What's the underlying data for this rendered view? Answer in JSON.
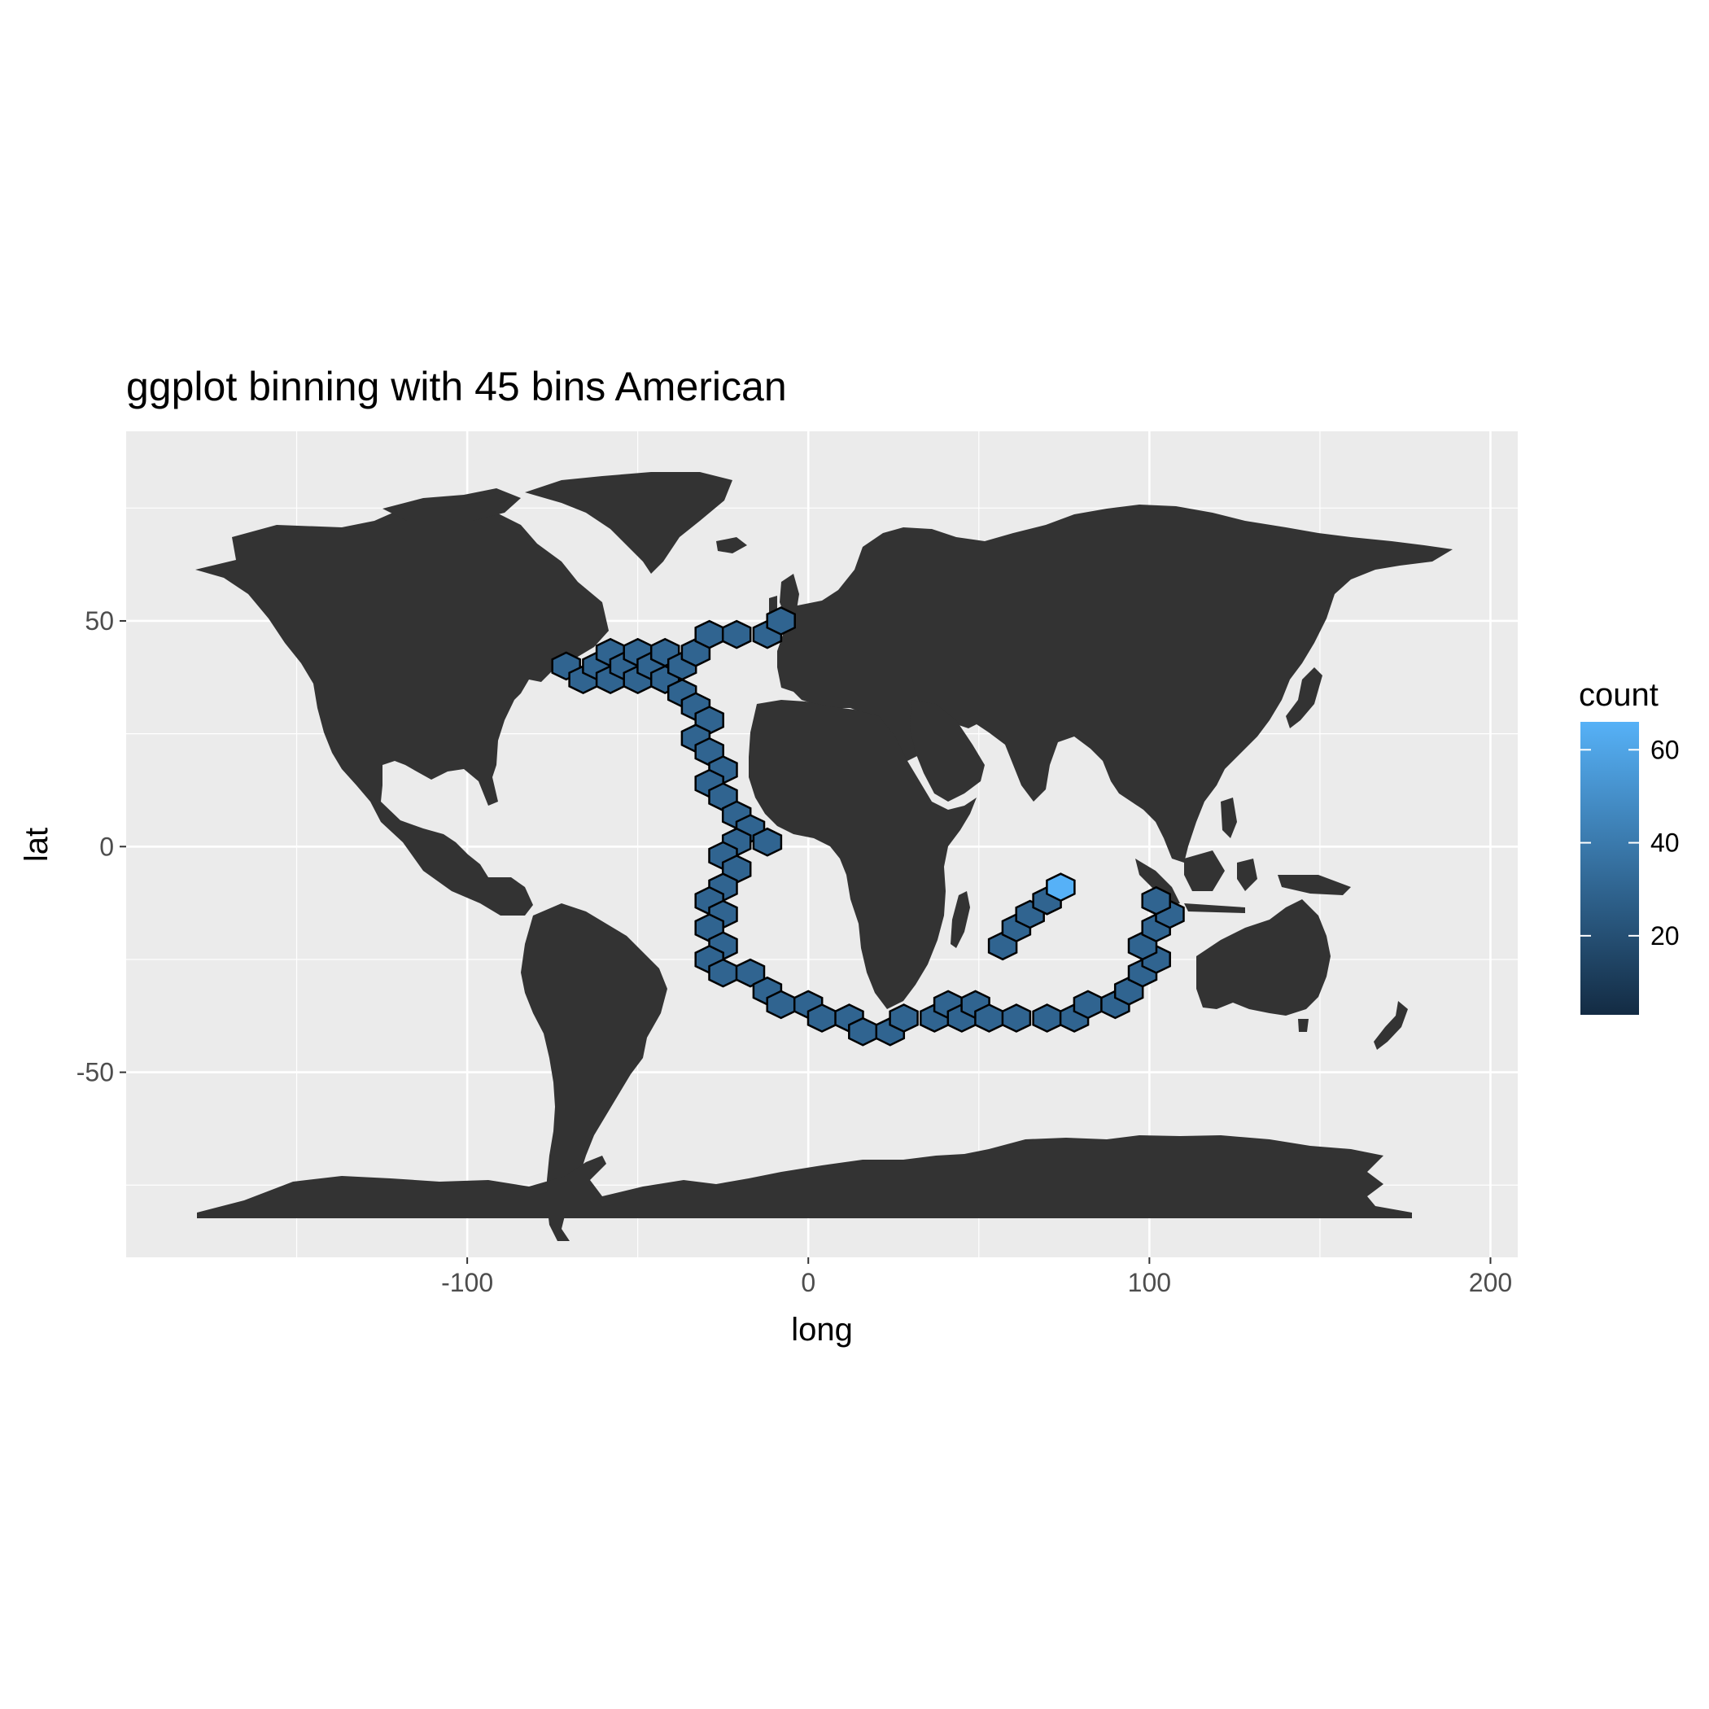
{
  "chart_data": {
    "type": "map-hexbin",
    "title": "ggplot binning with 45 bins American",
    "xlabel": "long",
    "ylabel": "lat",
    "xlim": [
      -200,
      208
    ],
    "ylim": [
      -91,
      92
    ],
    "x_ticks": [
      -100,
      0,
      100,
      200
    ],
    "y_ticks": [
      50,
      0,
      -50
    ],
    "x_tick_labels": [
      "-100",
      "0",
      "100",
      "200"
    ],
    "y_tick_labels": [
      "50",
      "0",
      "-50"
    ],
    "grid": true,
    "background_color": "#ebebeb",
    "land_color": "#333333",
    "legend": {
      "title": "count",
      "position": "right",
      "breaks": [
        20,
        40,
        60
      ],
      "break_labels": [
        "20",
        "40",
        "60"
      ],
      "range": [
        3,
        66
      ],
      "low_color": "#132b43",
      "high_color": "#56b1f7"
    },
    "bins": [
      {
        "x": -71,
        "y": 40,
        "count": 30
      },
      {
        "x": -66,
        "y": 37,
        "count": 30
      },
      {
        "x": -62,
        "y": 40,
        "count": 30
      },
      {
        "x": -58,
        "y": 43,
        "count": 30
      },
      {
        "x": -58,
        "y": 37,
        "count": 30
      },
      {
        "x": -54,
        "y": 40,
        "count": 30
      },
      {
        "x": -50,
        "y": 43,
        "count": 30
      },
      {
        "x": -50,
        "y": 37,
        "count": 30
      },
      {
        "x": -46,
        "y": 40,
        "count": 30
      },
      {
        "x": -42,
        "y": 43,
        "count": 30
      },
      {
        "x": -42,
        "y": 37,
        "count": 30
      },
      {
        "x": -37,
        "y": 40,
        "count": 30
      },
      {
        "x": -33,
        "y": 43,
        "count": 30
      },
      {
        "x": -29,
        "y": 47,
        "count": 30
      },
      {
        "x": -21,
        "y": 47,
        "count": 30
      },
      {
        "x": -12,
        "y": 47,
        "count": 30
      },
      {
        "x": -8,
        "y": 50,
        "count": 30
      },
      {
        "x": -37,
        "y": 34,
        "count": 30
      },
      {
        "x": -33,
        "y": 31,
        "count": 30
      },
      {
        "x": -29,
        "y": 28,
        "count": 30
      },
      {
        "x": -33,
        "y": 24,
        "count": 30
      },
      {
        "x": -29,
        "y": 21,
        "count": 30
      },
      {
        "x": -25,
        "y": 17,
        "count": 30
      },
      {
        "x": -29,
        "y": 14,
        "count": 30
      },
      {
        "x": -25,
        "y": 11,
        "count": 30
      },
      {
        "x": -21,
        "y": 7,
        "count": 30
      },
      {
        "x": -17,
        "y": 4,
        "count": 30
      },
      {
        "x": -12,
        "y": 1,
        "count": 30
      },
      {
        "x": -21,
        "y": 1,
        "count": 30
      },
      {
        "x": -25,
        "y": -2,
        "count": 30
      },
      {
        "x": -21,
        "y": -5,
        "count": 30
      },
      {
        "x": -25,
        "y": -9,
        "count": 30
      },
      {
        "x": -29,
        "y": -12,
        "count": 30
      },
      {
        "x": -25,
        "y": -15,
        "count": 30
      },
      {
        "x": -29,
        "y": -18,
        "count": 30
      },
      {
        "x": -25,
        "y": -22,
        "count": 30
      },
      {
        "x": -29,
        "y": -25,
        "count": 30
      },
      {
        "x": -25,
        "y": -28,
        "count": 30
      },
      {
        "x": -17,
        "y": -28,
        "count": 30
      },
      {
        "x": -12,
        "y": -32,
        "count": 30
      },
      {
        "x": -8,
        "y": -35,
        "count": 30
      },
      {
        "x": 0,
        "y": -35,
        "count": 30
      },
      {
        "x": 4,
        "y": -38,
        "count": 30
      },
      {
        "x": 12,
        "y": -38,
        "count": 30
      },
      {
        "x": 16,
        "y": -41,
        "count": 30
      },
      {
        "x": 24,
        "y": -41,
        "count": 30
      },
      {
        "x": 28,
        "y": -38,
        "count": 30
      },
      {
        "x": 37,
        "y": -38,
        "count": 30
      },
      {
        "x": 41,
        "y": -35,
        "count": 30
      },
      {
        "x": 45,
        "y": -38,
        "count": 30
      },
      {
        "x": 49,
        "y": -35,
        "count": 30
      },
      {
        "x": 53,
        "y": -38,
        "count": 30
      },
      {
        "x": 61,
        "y": -38,
        "count": 30
      },
      {
        "x": 70,
        "y": -38,
        "count": 30
      },
      {
        "x": 78,
        "y": -38,
        "count": 30
      },
      {
        "x": 82,
        "y": -35,
        "count": 30
      },
      {
        "x": 90,
        "y": -35,
        "count": 30
      },
      {
        "x": 94,
        "y": -32,
        "count": 30
      },
      {
        "x": 98,
        "y": -28,
        "count": 30
      },
      {
        "x": 102,
        "y": -25,
        "count": 30
      },
      {
        "x": 98,
        "y": -22,
        "count": 30
      },
      {
        "x": 102,
        "y": -18,
        "count": 30
      },
      {
        "x": 106,
        "y": -15,
        "count": 30
      },
      {
        "x": 102,
        "y": -12,
        "count": 30
      },
      {
        "x": 57,
        "y": -22,
        "count": 30
      },
      {
        "x": 61,
        "y": -18,
        "count": 30
      },
      {
        "x": 65,
        "y": -15,
        "count": 30
      },
      {
        "x": 70,
        "y": -12,
        "count": 30
      },
      {
        "x": 74,
        "y": -9,
        "count": 66
      }
    ]
  }
}
